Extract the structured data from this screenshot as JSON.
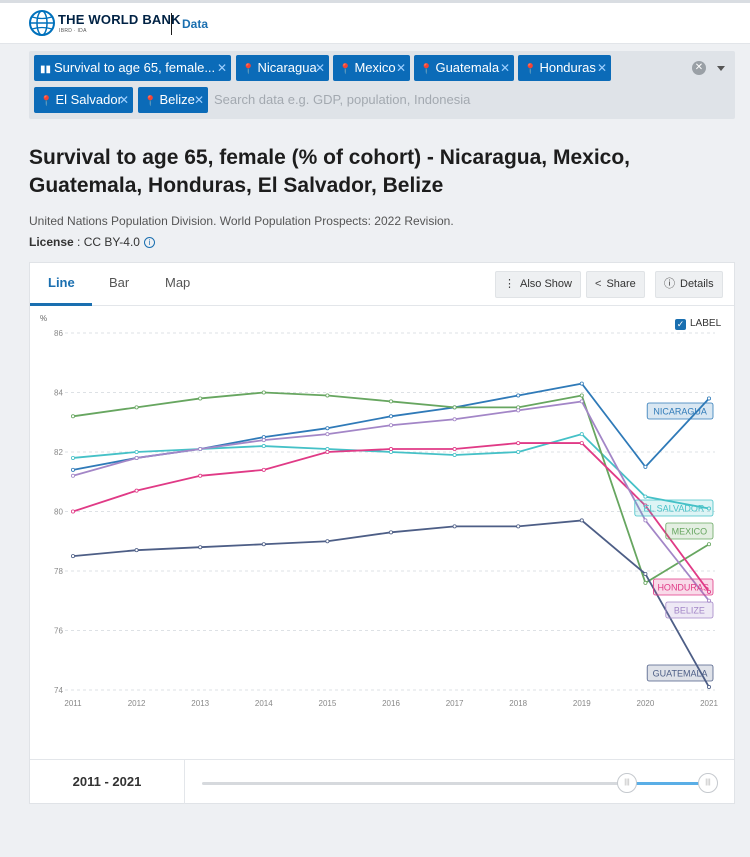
{
  "header": {
    "brand": "THE WORLD BANK",
    "brand_sub": "IBRD · IDA",
    "data_link": "Data"
  },
  "filters": {
    "chips": [
      {
        "label": "Survival to age 65, female...",
        "icon": "bar-chart-icon"
      },
      {
        "label": "Nicaragua",
        "icon": "map-pin-icon"
      },
      {
        "label": "Mexico",
        "icon": "map-pin-icon"
      },
      {
        "label": "Guatemala",
        "icon": "map-pin-icon"
      },
      {
        "label": "Honduras",
        "icon": "map-pin-icon"
      },
      {
        "label": "El Salvador",
        "icon": "map-pin-icon"
      },
      {
        "label": "Belize",
        "icon": "map-pin-icon"
      }
    ],
    "placeholder": "Search data e.g. GDP, population, Indonesia"
  },
  "page": {
    "title": "Survival to age 65, female (% of cohort) - Nicaragua, Mexico, Guatemala, Honduras, El Salvador, Belize",
    "source": "United Nations Population Division. World Population Prospects: 2022 Revision.",
    "license_label": "License",
    "license_value": " : CC BY-4.0"
  },
  "tabs": [
    "Line",
    "Bar",
    "Map"
  ],
  "toolbar": {
    "also_show": "Also Show",
    "share": "Share",
    "details": "Details"
  },
  "label_toggle": {
    "text": "LABEL",
    "checked": true
  },
  "range": {
    "label": "2011 - 2021"
  },
  "chart_data": {
    "type": "line",
    "title": "",
    "xlabel": "",
    "ylabel": "%",
    "ylim": [
      74,
      86
    ],
    "yticks": [
      74,
      76,
      78,
      80,
      82,
      84,
      86
    ],
    "x": [
      2011,
      2012,
      2013,
      2014,
      2015,
      2016,
      2017,
      2018,
      2019,
      2020,
      2021
    ],
    "grid": true,
    "series": [
      {
        "name": "NICARAGUA",
        "color": "#2f7ab8",
        "values": [
          81.4,
          81.8,
          82.1,
          82.5,
          82.8,
          83.2,
          83.5,
          83.9,
          84.3,
          81.5,
          83.8
        ]
      },
      {
        "name": "EL SALVADOR",
        "color": "#45c1c7",
        "values": [
          81.8,
          82.0,
          82.1,
          82.2,
          82.1,
          82.0,
          81.9,
          82.0,
          82.6,
          80.5,
          80.1
        ]
      },
      {
        "name": "MEXICO",
        "color": "#67a660",
        "values": [
          83.2,
          83.5,
          83.8,
          84.0,
          83.9,
          83.7,
          83.5,
          83.5,
          83.9,
          77.6,
          78.9
        ]
      },
      {
        "name": "HONDURAS",
        "color": "#e03a86",
        "values": [
          80.0,
          80.7,
          81.2,
          81.4,
          82.0,
          82.1,
          82.1,
          82.3,
          82.3,
          80.2,
          77.3
        ]
      },
      {
        "name": "BELIZE",
        "color": "#a386c7",
        "values": [
          81.2,
          81.8,
          82.1,
          82.4,
          82.6,
          82.9,
          83.1,
          83.4,
          83.7,
          79.7,
          77.0
        ]
      },
      {
        "name": "GUATEMALA",
        "color": "#4d5e86",
        "values": [
          78.5,
          78.7,
          78.8,
          78.9,
          79.0,
          79.3,
          79.5,
          79.5,
          79.7,
          77.9,
          74.1
        ]
      }
    ]
  }
}
